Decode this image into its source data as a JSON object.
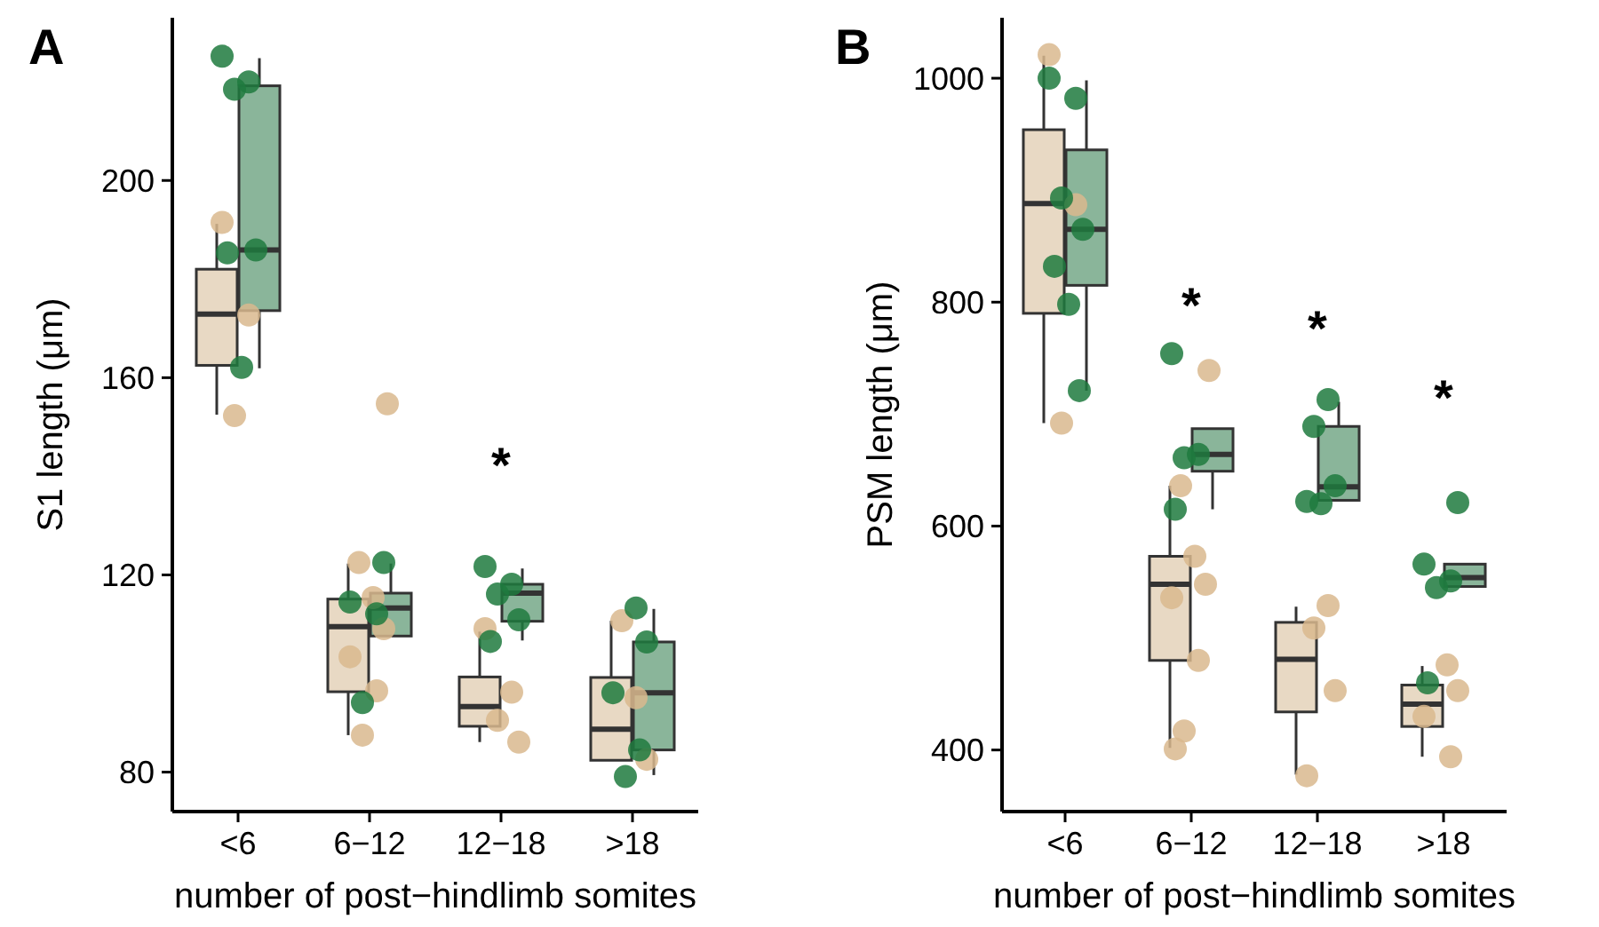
{
  "chart_data": [
    {
      "type": "box",
      "title": "A",
      "xlabel": "number of post−hindlimb somites",
      "ylabel": "S1 length (μm)",
      "categories": [
        "<6",
        "6−12",
        "12−18",
        ">18"
      ],
      "ylim": [
        72,
        233
      ],
      "yticks": [
        80,
        120,
        160,
        200
      ],
      "series": [
        {
          "type": "box",
          "color": "#e8d9c4",
          "boxes": [
            {
              "low": 152.5,
              "q1": 162.5,
              "median": 172.9,
              "q3": 182,
              "high": 191.2
            },
            {
              "low": 87.5,
              "q1": 96.3,
              "median": 109.5,
              "q3": 115.1,
              "high": 122.3
            },
            {
              "low": 86.1,
              "q1": 89.3,
              "median": 93.3,
              "q3": 99.3,
              "high": 108.5
            },
            {
              "low": 82.4,
              "q1": 82.4,
              "median": 88.7,
              "q3": 99.2,
              "high": 110.7
            }
          ]
        },
        {
          "type": "box",
          "color": "#8ab59a",
          "boxes": [
            {
              "low": 161.9,
              "q1": 173.6,
              "median": 185.9,
              "q3": 219.2,
              "high": 224.8
            },
            {
              "low": 107.6,
              "q1": 107.6,
              "median": 113.3,
              "q3": 116.3,
              "high": 122.3
            },
            {
              "low": 106.7,
              "q1": 110.6,
              "median": 116.3,
              "q3": 118.1,
              "high": 121.3
            },
            {
              "low": 79.4,
              "q1": 84.5,
              "median": 96.1,
              "q3": 106.4,
              "high": 113.1
            }
          ]
        },
        {
          "type": "scatter",
          "color": "#d9b98e",
          "x": [
            "<6",
            "<6",
            "<6",
            "6−12",
            "6−12",
            "6−12",
            "6−12",
            "6−12",
            "6−12",
            "6−12",
            "12−18",
            "12−18",
            "12−18",
            "12−18",
            ">18",
            ">18",
            ">18"
          ],
          "values": [
            191.5,
            172.7,
            152.3,
            154.7,
            122.5,
            115.4,
            109.1,
            103.4,
            96.5,
            87.5,
            109.1,
            96.2,
            90.5,
            86.1,
            110.7,
            95.1,
            82.6
          ]
        },
        {
          "type": "scatter",
          "color": "#1e7a3e",
          "x": [
            "<6",
            "<6",
            "<6",
            "<6",
            "<6",
            "<6",
            "6−12",
            "6−12",
            "6−12",
            "6−12",
            "12−18",
            "12−18",
            "12−18",
            "12−18",
            "12−18",
            ">18",
            ">18",
            ">18",
            ">18",
            ">18"
          ],
          "values": [
            225.2,
            220,
            218.5,
            185.9,
            185.3,
            162.1,
            122.5,
            114.5,
            112.1,
            94.1,
            121.7,
            118.1,
            116.1,
            110.9,
            106.5,
            113.3,
            106.4,
            96.1,
            84.5,
            79.1
          ]
        }
      ],
      "annotations": [
        "*"
      ]
    },
    {
      "type": "box",
      "title": "B",
      "xlabel": "number of post−hindlimb somites",
      "ylabel": "PSM length (μm)",
      "categories": [
        "<6",
        "6−12",
        "12−18",
        ">18"
      ],
      "ylim": [
        345,
        1054
      ],
      "yticks": [
        400,
        600,
        800,
        1000
      ],
      "series": [
        {
          "type": "box",
          "color": "#e8d9c4",
          "boxes": [
            {
              "low": 692,
              "q1": 790,
              "median": 888,
              "q3": 954,
              "high": 1020
            },
            {
              "low": 402,
              "q1": 480,
              "median": 548,
              "q3": 573,
              "high": 636
            },
            {
              "low": 378,
              "q1": 434,
              "median": 481,
              "q3": 514,
              "high": 528
            },
            {
              "low": 394,
              "q1": 421,
              "median": 441,
              "q3": 458,
              "high": 475
            }
          ]
        },
        {
          "type": "box",
          "color": "#8ab59a",
          "boxes": [
            {
              "low": 721,
              "q1": 815,
              "median": 865,
              "q3": 936,
              "high": 998
            },
            {
              "low": 615,
              "q1": 649,
              "median": 664,
              "q3": 687,
              "high": 687
            },
            {
              "low": 623,
              "q1": 623,
              "median": 635,
              "q3": 689,
              "high": 711
            },
            {
              "low": 546,
              "q1": 546,
              "median": 554,
              "q3": 566,
              "high": 566
            }
          ]
        },
        {
          "type": "scatter",
          "color": "#d9b98e",
          "x": [
            "<6",
            "<6",
            "<6",
            "6−12",
            "6−12",
            "6−12",
            "6−12",
            "6−12",
            "6−12",
            "6−12",
            "6−12",
            "12−18",
            "12−18",
            "12−18",
            "12−18",
            ">18",
            ">18",
            ">18",
            ">18"
          ],
          "values": [
            1021,
            887,
            692,
            739,
            636,
            573,
            548,
            536,
            480,
            417,
            401,
            529,
            509,
            453,
            377,
            476,
            453,
            430,
            394
          ]
        },
        {
          "type": "scatter",
          "color": "#1e7a3e",
          "x": [
            "<6",
            "<6",
            "<6",
            "<6",
            "<6",
            "<6",
            "<6",
            "6−12",
            "6−12",
            "6−12",
            "6−12",
            "12−18",
            "12−18",
            "12−18",
            "12−18",
            "12−18",
            ">18",
            ">18",
            ">18",
            ">18",
            ">18"
          ],
          "values": [
            1000,
            982,
            893,
            865,
            832,
            798,
            721,
            754,
            664,
            661,
            615,
            713,
            689,
            636,
            622,
            620,
            621,
            566,
            551,
            545,
            460
          ]
        }
      ],
      "annotations": [
        "*",
        "*",
        "*"
      ]
    }
  ]
}
